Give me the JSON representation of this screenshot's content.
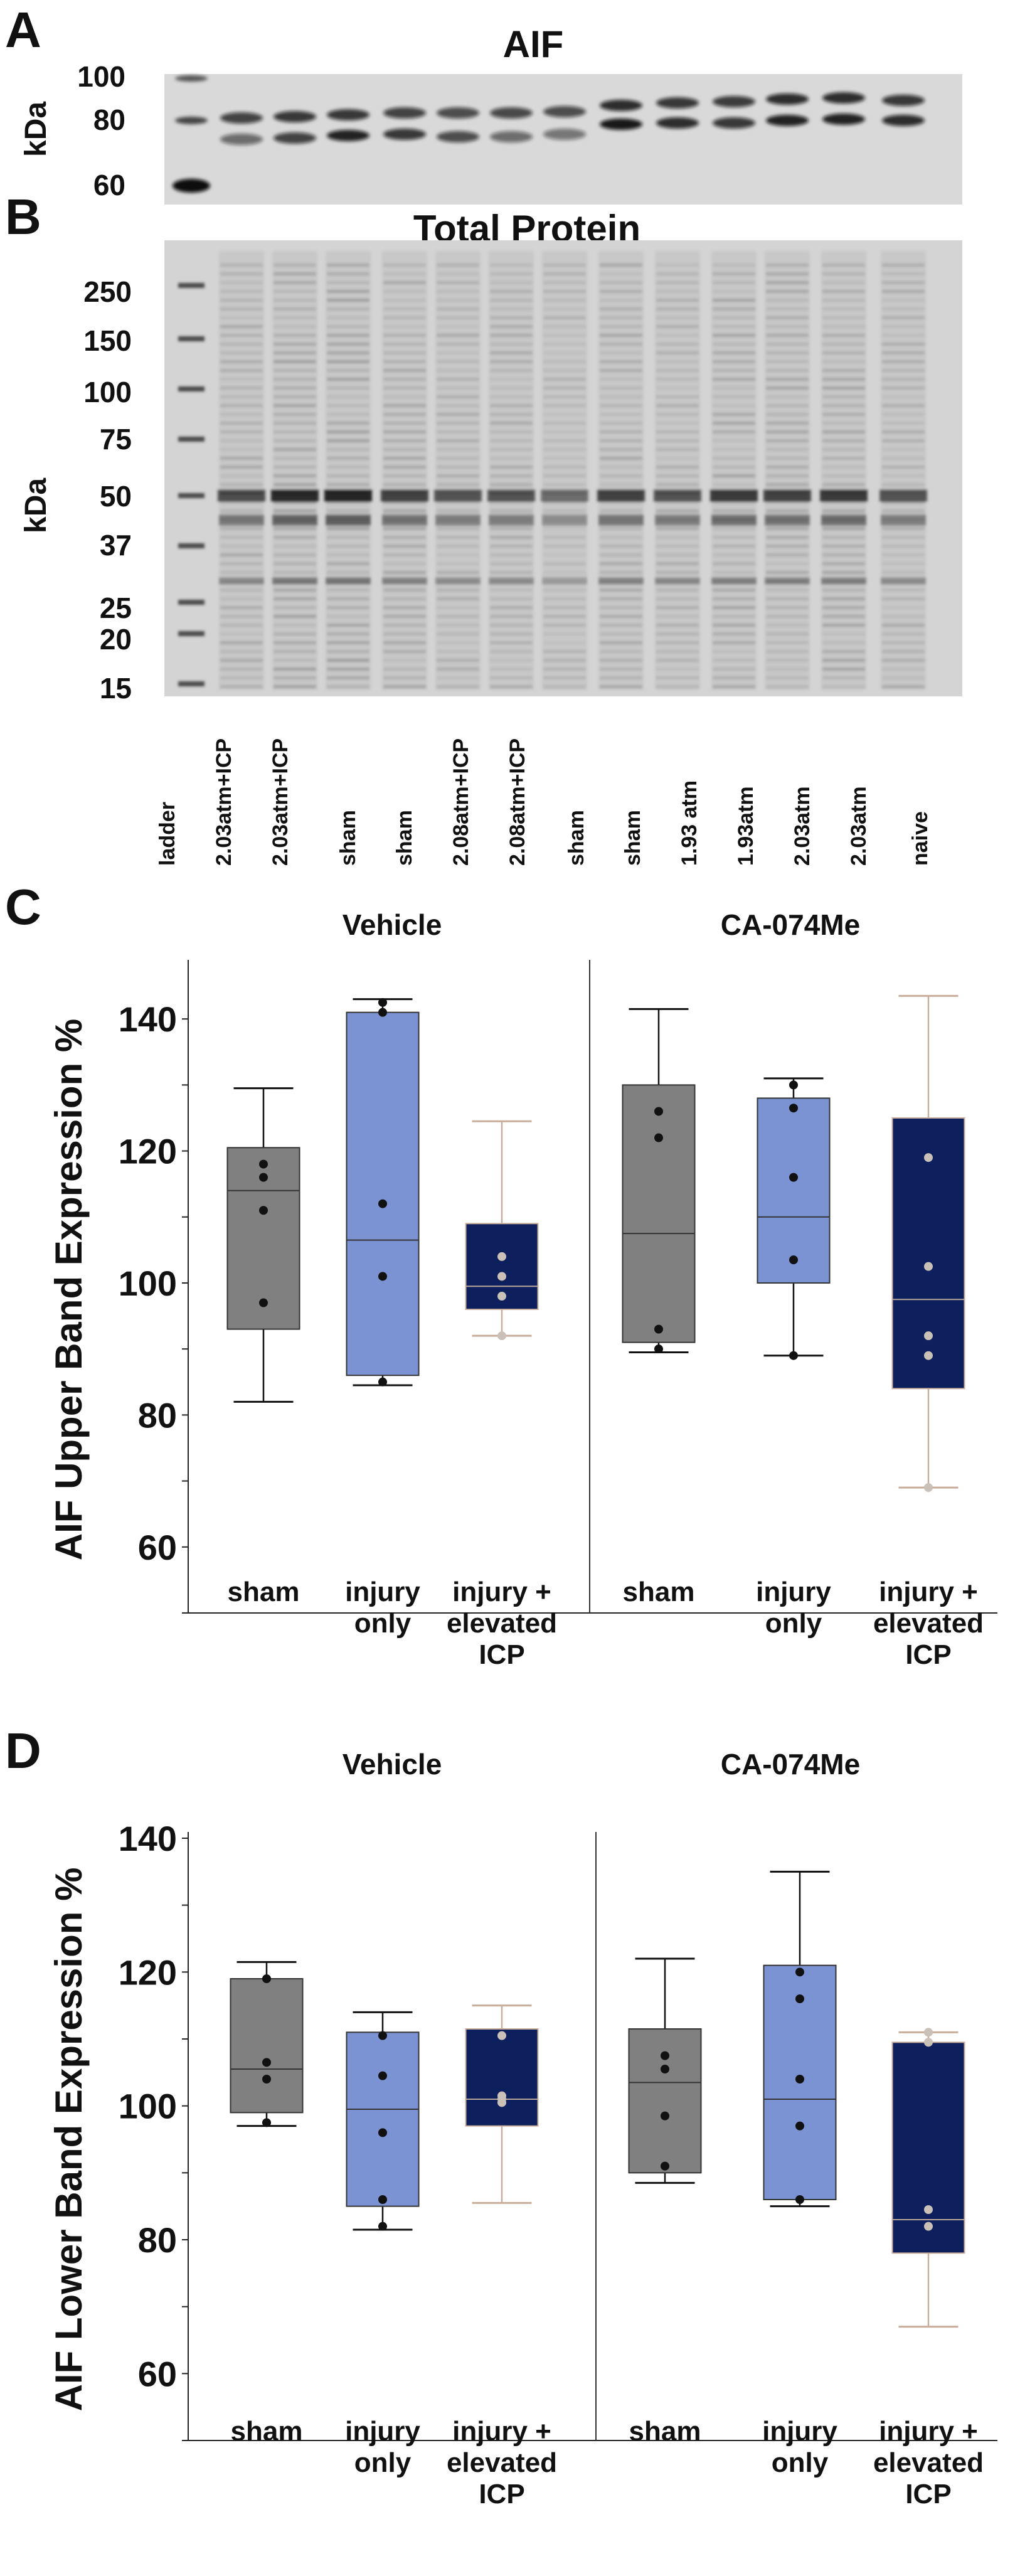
{
  "panel_a": {
    "letter": "A",
    "title": "AIF",
    "kda_label": "kDa",
    "mw_markers": [
      "100",
      "80",
      "60"
    ]
  },
  "panel_b": {
    "letter": "B",
    "title": "Total Protein",
    "kda_label": "kDa",
    "mw_markers": [
      "250",
      "150",
      "100",
      "75",
      "50",
      "37",
      "25",
      "20",
      "15"
    ],
    "lanes": [
      "ladder",
      "2.03atm+ICP",
      "2.03atm+ICP",
      "sham",
      "sham",
      "2.08atm+ICP",
      "2.08atm+ICP",
      "sham",
      "sham",
      "1.93 atm",
      "1.93atm",
      "2.03atm",
      "2.03atm",
      "naive"
    ]
  },
  "colors": {
    "sham": "#808080",
    "injury_only": "#7b93d3",
    "elevated_icp": "#0d1f5c",
    "whisker_dark": "#111111",
    "whisker_tan": "#c8ae9a",
    "dot_dark": "#111111",
    "dot_light": "#c9c0b8"
  },
  "chart_data": [
    {
      "type": "boxplot",
      "panel": "C",
      "ylabel": "AIF Upper Band Expression %",
      "ylim": [
        50,
        148
      ],
      "yticks": [
        60,
        80,
        100,
        120,
        140
      ],
      "facets": [
        "Vehicle",
        "CA-074Me"
      ],
      "categories": [
        "sham",
        "injury\nonly",
        "injury +\nelevated\nICP"
      ],
      "groups": [
        {
          "facet": "Vehicle",
          "category": "sham",
          "min": 82,
          "q1": 93,
          "median": 114,
          "q3": 120.5,
          "max": 129.5,
          "points": [
            97,
            111,
            116,
            118
          ]
        },
        {
          "facet": "Vehicle",
          "category": "injury only",
          "min": 84.5,
          "q1": 86,
          "median": 106.5,
          "q3": 141,
          "max": 143,
          "points": [
            85,
            101,
            112,
            141,
            142.5
          ]
        },
        {
          "facet": "Vehicle",
          "category": "injury + elevated ICP",
          "min": 92,
          "q1": 96,
          "median": 99.5,
          "q3": 109,
          "max": 124.5,
          "points": [
            92,
            98,
            101,
            104
          ]
        },
        {
          "facet": "CA-074Me",
          "category": "sham",
          "min": 89.5,
          "q1": 91,
          "median": 107.5,
          "q3": 130,
          "max": 141.5,
          "points": [
            90,
            93,
            122,
            126
          ]
        },
        {
          "facet": "CA-074Me",
          "category": "injury only",
          "min": 89,
          "q1": 100,
          "median": 110,
          "q3": 128,
          "max": 131,
          "points": [
            89,
            103.5,
            116,
            126.5,
            130
          ]
        },
        {
          "facet": "CA-074Me",
          "category": "injury + elevated ICP",
          "min": 69,
          "q1": 84,
          "median": 97.5,
          "q3": 125,
          "max": 143.5,
          "points": [
            69,
            89,
            92,
            102.5,
            119
          ]
        }
      ]
    },
    {
      "type": "boxplot",
      "panel": "D",
      "ylabel": "AIF Lower Band Expression %",
      "ylim": [
        50,
        140
      ],
      "yticks": [
        60,
        80,
        100,
        120,
        140
      ],
      "facets": [
        "Vehicle",
        "CA-074Me"
      ],
      "categories": [
        "sham",
        "injury\nonly",
        "injury +\nelevated\nICP"
      ],
      "groups": [
        {
          "facet": "Vehicle",
          "category": "sham",
          "min": 97,
          "q1": 99,
          "median": 105.5,
          "q3": 119,
          "max": 121.5,
          "points": [
            97.5,
            104,
            106.5,
            119
          ]
        },
        {
          "facet": "Vehicle",
          "category": "injury only",
          "min": 81.5,
          "q1": 85,
          "median": 99.5,
          "q3": 111,
          "max": 114,
          "points": [
            82,
            86,
            96,
            104.5,
            110.5
          ]
        },
        {
          "facet": "Vehicle",
          "category": "injury + elevated ICP",
          "min": 85.5,
          "q1": 97,
          "median": 101,
          "q3": 111.5,
          "max": 115,
          "points": [
            100.5,
            101,
            101.5,
            110.5
          ]
        },
        {
          "facet": "CA-074Me",
          "category": "sham",
          "min": 88.5,
          "q1": 90,
          "median": 103.5,
          "q3": 111.5,
          "max": 122,
          "points": [
            91,
            98.5,
            105.5,
            107.5
          ]
        },
        {
          "facet": "CA-074Me",
          "category": "injury only",
          "min": 85,
          "q1": 86,
          "median": 101,
          "q3": 121,
          "max": 135,
          "points": [
            86,
            97,
            104,
            116,
            120
          ]
        },
        {
          "facet": "CA-074Me",
          "category": "injury + elevated ICP",
          "min": 67,
          "q1": 78,
          "median": 83,
          "q3": 109.5,
          "max": 111,
          "points": [
            82,
            84.5,
            109.5,
            111
          ]
        }
      ]
    }
  ]
}
